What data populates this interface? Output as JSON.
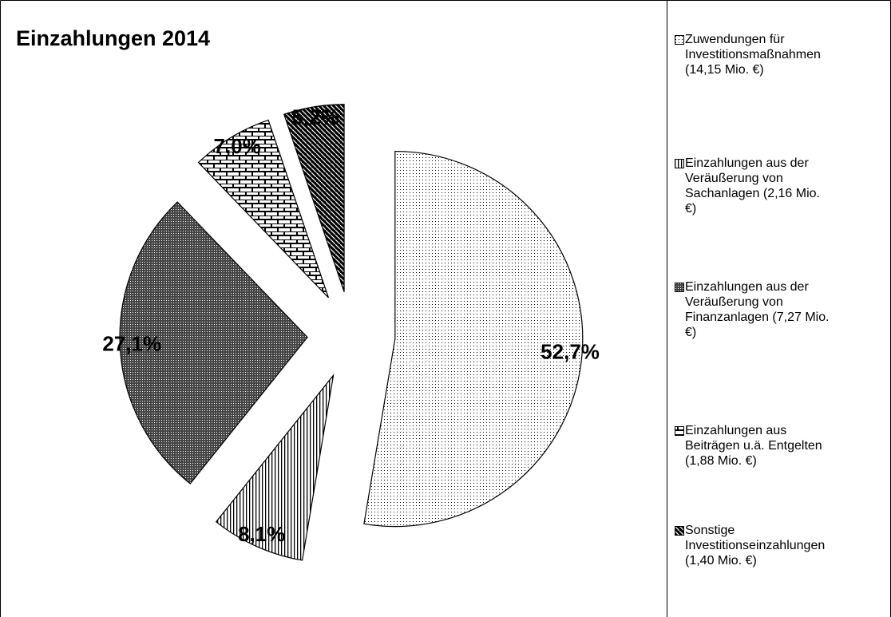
{
  "chart_data": {
    "type": "pie",
    "title": "Einzahlungen 2014",
    "categories": [
      "Zuwendungen für Investitionsmaßnahmen (14,15 Mio. €)",
      "Einzahlungen aus der Veräußerung von Sachanlagen (2,16 Mio. €)",
      "Einzahlungen aus der Veräußerung von Finanzanlagen (7,27 Mio. €)",
      "Einzahlungen aus Beiträgen u.ä. Entgelten (1,88 Mio. €)",
      "Sonstige Investitionseinzahlungen (1,40 Mio. €)"
    ],
    "values": [
      52.7,
      8.1,
      27.1,
      7.0,
      5.2
    ],
    "value_labels": [
      "52,7%",
      "8,1%",
      "27,1%",
      "7,0%",
      "5,2%"
    ]
  }
}
